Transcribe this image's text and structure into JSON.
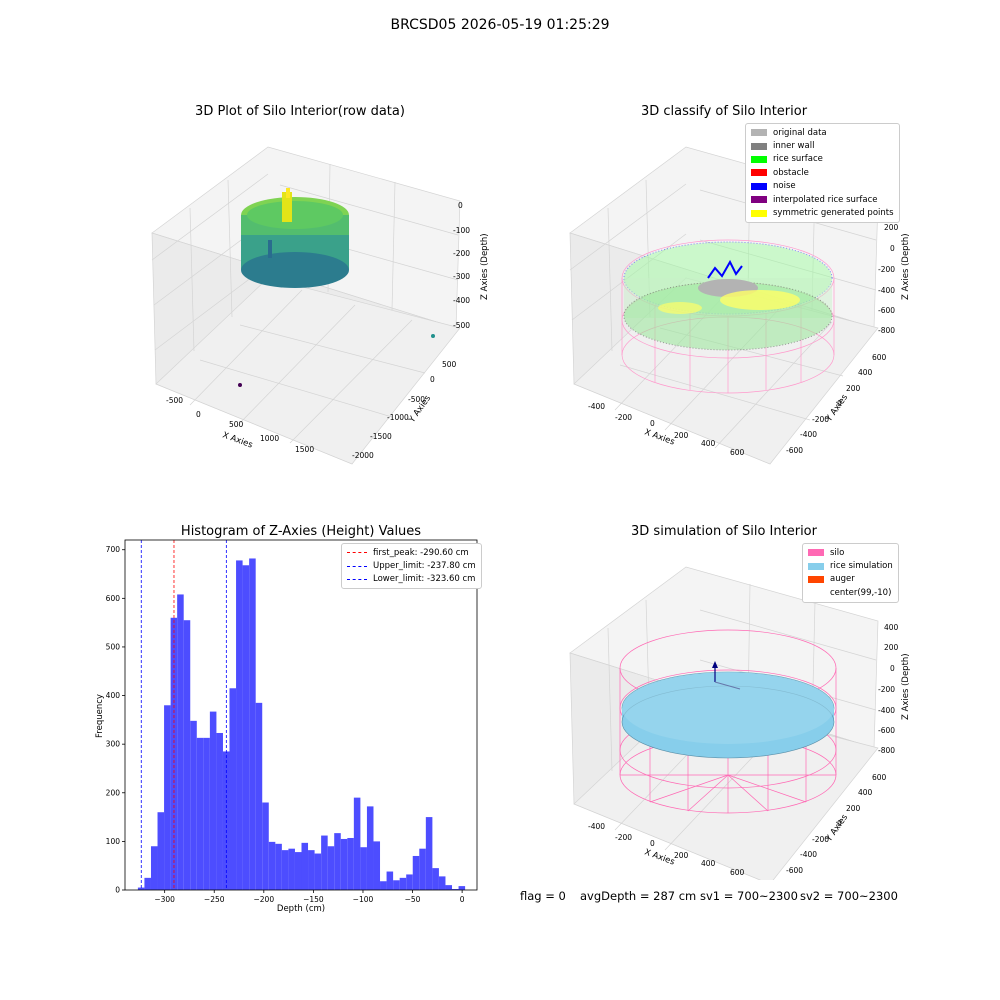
{
  "suptitle": "BRCSD05 2026-05-19 01:25:29",
  "panels": {
    "raw": {
      "title": "3D Plot of Silo Interior(row data)",
      "xlabel": "X Axies",
      "ylabel": "Y Axies",
      "zlabel": "Z Axies (Depth)",
      "xticks": [
        "-500",
        "0",
        "500",
        "1000",
        "1500"
      ],
      "yticks": [
        "500",
        "0",
        "-500",
        "-1000",
        "-1500",
        "-2000"
      ],
      "zticks": [
        "0",
        "-100",
        "-200",
        "-300",
        "-400",
        "-500"
      ]
    },
    "classify": {
      "title": "3D classify of Silo Interior",
      "xlabel": "X Axies",
      "ylabel": "Y Axies",
      "zlabel": "Z Axies (Depth)",
      "xticks": [
        "-400",
        "-200",
        "0",
        "200",
        "400",
        "600"
      ],
      "yticks": [
        "600",
        "400",
        "200",
        "0",
        "-200",
        "-400",
        "-600"
      ],
      "zticks": [
        "200",
        "0",
        "-200",
        "-400",
        "-600",
        "-800"
      ],
      "legend": [
        {
          "label": "original data",
          "color": "#b3b3b3"
        },
        {
          "label": "inner wall",
          "color": "#808080"
        },
        {
          "label": "rice surface",
          "color": "#00ff00"
        },
        {
          "label": "obstacle",
          "color": "#ff0000"
        },
        {
          "label": "noise",
          "color": "#0000ff"
        },
        {
          "label": "interpolated rice surface",
          "color": "#800080"
        },
        {
          "label": "symmetric generated points",
          "color": "#ffff00"
        }
      ]
    },
    "simulation": {
      "title": "3D simulation of Silo Interior",
      "xlabel": "X Axies",
      "ylabel": "Y Axies",
      "zlabel": "Z Axies (Depth)",
      "xticks": [
        "-400",
        "-200",
        "0",
        "200",
        "400",
        "600"
      ],
      "yticks": [
        "600",
        "400",
        "200",
        "0",
        "-200",
        "-400",
        "-600"
      ],
      "zticks": [
        "400",
        "200",
        "0",
        "-200",
        "-400",
        "-600",
        "-800"
      ],
      "legend": [
        {
          "label": "silo",
          "color": "#ff69b4"
        },
        {
          "label": "rice simulation",
          "color": "#87ceeb"
        },
        {
          "label": "auger",
          "color": "#ff4500"
        },
        {
          "label": "center(99,-10)",
          "color": "#ffffff"
        }
      ]
    }
  },
  "footer": {
    "flag": "flag = 0",
    "avg": "avgDepth = 287 cm",
    "sv1": "sv1 = 700~2300",
    "sv2": "sv2 = 700~2300"
  },
  "chart_data": [
    {
      "type": "bar",
      "title": "Histogram of Z-Axies (Height) Values",
      "xlabel": "Depth (cm)",
      "ylabel": "Frequency",
      "xlim": [
        -340,
        15
      ],
      "ylim": [
        0,
        720
      ],
      "xticks": [
        -300,
        -250,
        -200,
        -150,
        -100,
        -50,
        0
      ],
      "yticks": [
        0,
        100,
        200,
        300,
        400,
        500,
        600,
        700
      ],
      "bar_color": "#4d4dff",
      "bin_edges": [
        -327.0,
        -320.4,
        -313.8,
        -307.2,
        -300.6,
        -294.0,
        -287.4,
        -280.8,
        -274.2,
        -267.6,
        -261.0,
        -254.4,
        -247.8,
        -241.2,
        -234.6,
        -228.0,
        -221.4,
        -214.8,
        -208.2,
        -201.6,
        -195.0,
        -188.4,
        -181.8,
        -175.2,
        -168.6,
        -162.0,
        -155.4,
        -148.8,
        -142.2,
        -135.6,
        -129.0,
        -122.4,
        -115.8,
        -109.2,
        -102.6,
        -96.0,
        -89.4,
        -82.8,
        -76.2,
        -69.6,
        -63.0,
        -56.4,
        -49.8,
        -43.2,
        -36.6,
        -30.0,
        -23.4,
        -16.8,
        -10.2,
        -3.6,
        3.0
      ],
      "values": [
        5,
        25,
        90,
        160,
        380,
        560,
        608,
        555,
        348,
        313,
        313,
        367,
        323,
        285,
        415,
        678,
        668,
        682,
        385,
        180,
        99,
        95,
        82,
        85,
        78,
        97,
        82,
        75,
        112,
        90,
        117,
        105,
        107,
        190,
        88,
        172,
        100,
        18,
        38,
        20,
        25,
        32,
        70,
        85,
        150,
        45,
        28,
        10,
        2,
        8
      ],
      "vlines": [
        {
          "x": -290.6,
          "label": "first_peak: -290.60 cm",
          "color": "#ff0000"
        },
        {
          "x": -237.8,
          "label": "Upper_limit: -237.80 cm",
          "color": "#0000ff"
        },
        {
          "x": -323.6,
          "label": "Lower_limit: -323.60 cm",
          "color": "#0000ff"
        }
      ],
      "legend_loc": "upper right"
    }
  ]
}
